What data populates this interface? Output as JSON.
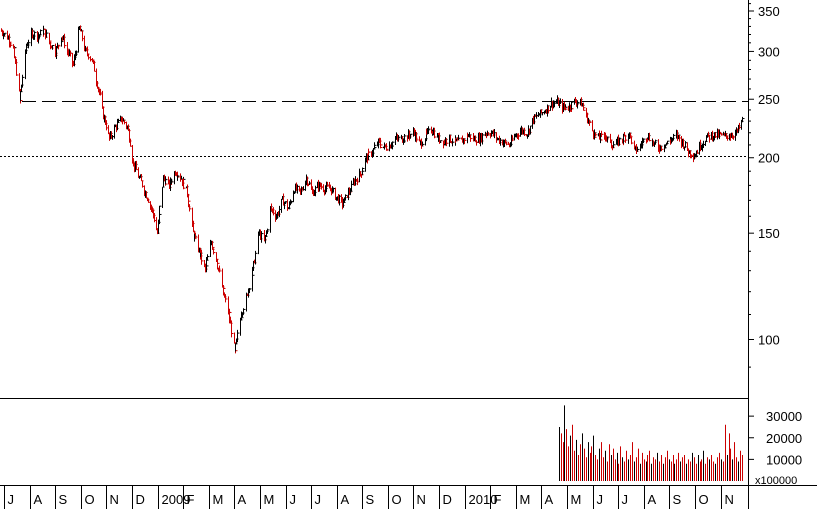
{
  "chart_data": [
    {
      "type": "line",
      "panel": "price",
      "title": "",
      "xlabel": "",
      "ylabel": "",
      "scale": "log",
      "ylim": [
        80,
        365
      ],
      "yticks": [
        100,
        150,
        200,
        250,
        300,
        350
      ],
      "ytick_labels": [
        "100",
        "150",
        "200",
        "250",
        "300",
        "350"
      ],
      "reference_lines": [
        {
          "value": 248,
          "style": "dashed"
        },
        {
          "value": 201,
          "style": "dotted"
        }
      ],
      "series": [
        {
          "color_up": "#000000",
          "color_down": "#cc0000",
          "x": [
            "2008-06-15",
            "2008-06-25",
            "2008-07-01",
            "2008-07-08",
            "2008-07-15",
            "2008-07-22",
            "2008-07-29",
            "2008-08-05",
            "2008-08-12",
            "2008-08-19",
            "2008-08-26",
            "2008-09-02",
            "2008-09-09",
            "2008-09-16",
            "2008-09-23",
            "2008-09-30",
            "2008-10-07",
            "2008-10-14",
            "2008-10-21",
            "2008-10-28",
            "2008-11-04",
            "2008-11-11",
            "2008-11-18",
            "2008-11-25",
            "2008-12-02",
            "2008-12-09",
            "2008-12-16",
            "2008-12-23",
            "2008-12-30",
            "2009-01-06",
            "2009-01-13",
            "2009-01-20",
            "2009-01-27",
            "2009-02-03",
            "2009-02-10",
            "2009-02-17",
            "2009-02-24",
            "2009-03-03",
            "2009-03-10",
            "2009-03-17",
            "2009-03-24",
            "2009-03-31",
            "2009-04-07",
            "2009-04-14",
            "2009-04-21",
            "2009-04-28",
            "2009-05-05",
            "2009-05-12",
            "2009-05-19",
            "2009-05-26",
            "2009-06-02",
            "2009-06-09",
            "2009-06-16",
            "2009-06-23",
            "2009-06-30",
            "2009-07-07",
            "2009-07-14",
            "2009-07-21",
            "2009-07-28",
            "2009-08-04",
            "2009-08-11",
            "2009-08-18",
            "2009-08-25",
            "2009-09-01",
            "2009-09-08",
            "2009-09-15",
            "2009-09-22",
            "2009-09-29",
            "2009-10-06",
            "2009-10-13",
            "2009-10-20",
            "2009-10-27",
            "2009-11-03",
            "2009-11-10",
            "2009-11-17",
            "2009-11-24",
            "2009-12-01",
            "2009-12-08",
            "2009-12-15",
            "2009-12-22",
            "2009-12-29",
            "2010-01-05",
            "2010-01-12",
            "2010-01-19",
            "2010-01-26",
            "2010-02-02",
            "2010-02-09",
            "2010-02-16",
            "2010-02-23",
            "2010-03-02",
            "2010-03-09",
            "2010-03-16",
            "2010-03-23",
            "2010-03-30",
            "2010-04-06",
            "2010-04-13",
            "2010-04-20",
            "2010-04-27",
            "2010-05-04",
            "2010-05-11",
            "2010-05-18",
            "2010-05-25",
            "2010-06-01",
            "2010-06-08",
            "2010-06-15",
            "2010-06-22",
            "2010-06-29",
            "2010-07-06",
            "2010-07-13",
            "2010-07-20",
            "2010-07-27",
            "2010-08-03",
            "2010-08-10",
            "2010-08-17",
            "2010-08-24",
            "2010-08-31",
            "2010-09-07",
            "2010-09-14",
            "2010-09-21",
            "2010-09-28",
            "2010-10-05",
            "2010-10-12",
            "2010-10-19",
            "2010-10-26",
            "2010-11-02"
          ],
          "values": [
            325,
            315,
            300,
            248,
            305,
            322,
            318,
            325,
            310,
            300,
            318,
            300,
            285,
            328,
            300,
            292,
            265,
            235,
            215,
            225,
            232,
            225,
            195,
            185,
            175,
            165,
            150,
            185,
            180,
            190,
            185,
            175,
            150,
            140,
            130,
            145,
            135,
            120,
            110,
            95,
            110,
            118,
            130,
            150,
            145,
            165,
            160,
            170,
            165,
            178,
            175,
            185,
            175,
            180,
            178,
            178,
            172,
            168,
            175,
            183,
            188,
            200,
            205,
            212,
            208,
            210,
            215,
            215,
            218,
            220,
            210,
            218,
            223,
            215,
            213,
            215,
            212,
            213,
            218,
            215,
            215,
            220,
            220,
            215,
            212,
            210,
            218,
            222,
            220,
            232,
            236,
            240,
            246,
            247,
            242,
            243,
            248,
            246,
            232,
            220,
            215,
            218,
            210,
            212,
            215,
            220,
            205,
            210,
            218,
            212,
            208,
            210,
            214,
            218,
            212,
            205,
            202,
            210,
            216,
            218,
            218,
            217,
            218,
            220,
            230
          ]
        }
      ]
    },
    {
      "type": "bar",
      "panel": "volume",
      "title": "",
      "xlabel": "",
      "ylabel": "",
      "unit_label": "x100000",
      "ylim": [
        0,
        37000
      ],
      "yticks": [
        10000,
        20000,
        30000
      ],
      "ytick_labels": [
        "10000",
        "20000",
        "30000"
      ],
      "series": [
        {
          "x_start": "2010-04-01",
          "x_end": "2010-11-02",
          "values": [
            25000,
            22000,
            18000,
            35000,
            24000,
            16000,
            21000,
            26000,
            14000,
            19000,
            12000,
            17000,
            22000,
            15000,
            11000,
            18000,
            13000,
            16000,
            21000,
            12000,
            10000,
            15000,
            18000,
            11000,
            14000,
            9000,
            17000,
            12000,
            15000,
            10000,
            13000,
            8000,
            16000,
            11000,
            9000,
            14000,
            10000,
            12000,
            18000,
            9000,
            11000,
            15000,
            8000,
            13000,
            10000,
            9000,
            12000,
            14000,
            8000,
            11000,
            10000,
            13000,
            9000,
            12000,
            8000,
            11000,
            14000,
            10000,
            9000,
            12000,
            8000,
            10000,
            13000,
            9000,
            11000,
            12000,
            8000,
            10000,
            9000,
            13000,
            11000,
            8000,
            12000,
            9000,
            10000,
            14000,
            8000,
            11000,
            10000,
            12000,
            9000,
            8000,
            11000,
            13000,
            10000,
            9000,
            26000,
            12000,
            22000,
            15000,
            10000,
            18000,
            11000,
            9000,
            14000,
            12000
          ]
        }
      ]
    }
  ],
  "x_axis": {
    "month_labels": [
      "J",
      "A",
      "S",
      "O",
      "N",
      "D",
      "2009",
      "F",
      "M",
      "A",
      "M",
      "J",
      "J",
      "A",
      "S",
      "O",
      "N",
      "D",
      "2010",
      "F",
      "M",
      "A",
      "M",
      "J",
      "J",
      "A",
      "S",
      "O",
      "N"
    ],
    "month_dates": [
      "2008-06-28",
      "2008-07-28",
      "2008-08-27",
      "2008-09-26",
      "2008-10-26",
      "2008-11-25",
      "2008-12-25",
      "2009-01-24",
      "2009-02-23",
      "2009-03-25",
      "2009-04-24",
      "2009-05-24",
      "2009-06-23",
      "2009-07-23",
      "2009-08-22",
      "2009-09-21",
      "2009-10-21",
      "2009-11-20",
      "2009-12-20",
      "2010-01-19",
      "2010-02-18",
      "2010-03-20",
      "2010-04-19",
      "2010-05-19",
      "2010-06-18",
      "2010-07-18",
      "2010-08-17",
      "2010-09-16",
      "2010-10-16"
    ]
  }
}
